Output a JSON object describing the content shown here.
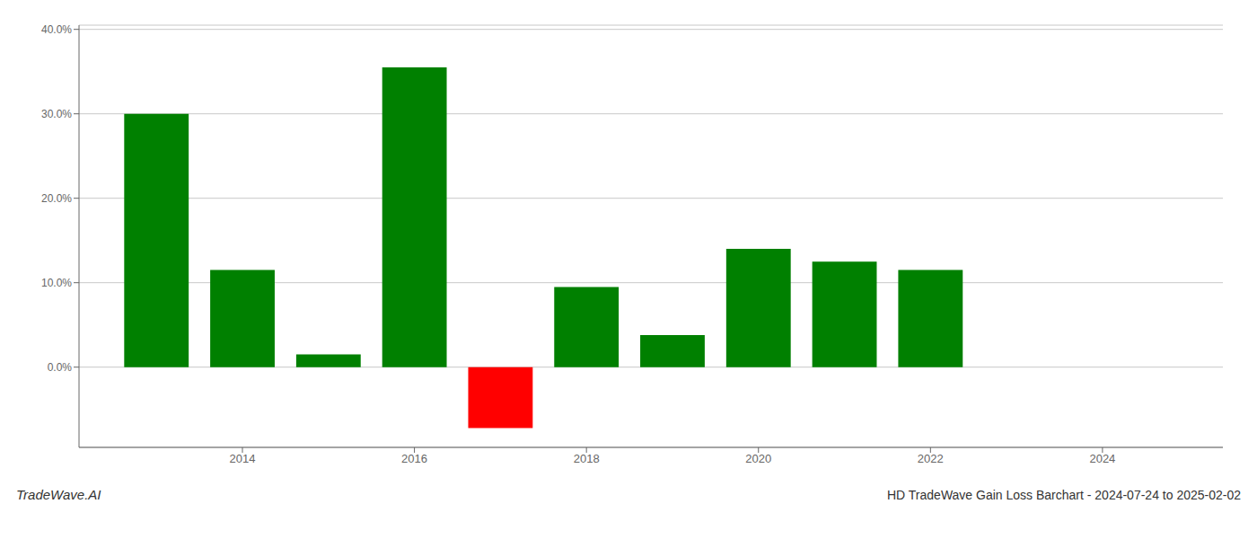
{
  "chart_data": {
    "type": "bar",
    "title": "HD TradeWave Gain Loss Barchart - 2024-07-24 to 2025-02-02",
    "annotations": [
      "TradeWave.AI"
    ],
    "x": [
      2013,
      2014,
      2015,
      2016,
      2017,
      2018,
      2019,
      2020,
      2021,
      2022
    ],
    "values": [
      0.3,
      0.115,
      0.015,
      0.355,
      -0.072,
      0.095,
      0.038,
      0.14,
      0.125,
      0.115
    ],
    "colors": [
      "#008000",
      "#008000",
      "#008000",
      "#008000",
      "#ff0000",
      "#008000",
      "#008000",
      "#008000",
      "#008000",
      "#008000"
    ],
    "xlim": [
      2012.1,
      2025.4
    ],
    "xticks": [
      2014,
      2016,
      2018,
      2020,
      2022,
      2024
    ],
    "ylim": [
      -0.095,
      0.405
    ],
    "yticks": [
      {
        "value": 0,
        "label": "0.0%"
      },
      {
        "value": 0.1,
        "label": "10.0%"
      },
      {
        "value": 0.2,
        "label": "20.0%"
      },
      {
        "value": 0.3,
        "label": "30.0%"
      },
      {
        "value": 0.4,
        "label": "40.0%"
      }
    ],
    "grid": true
  }
}
